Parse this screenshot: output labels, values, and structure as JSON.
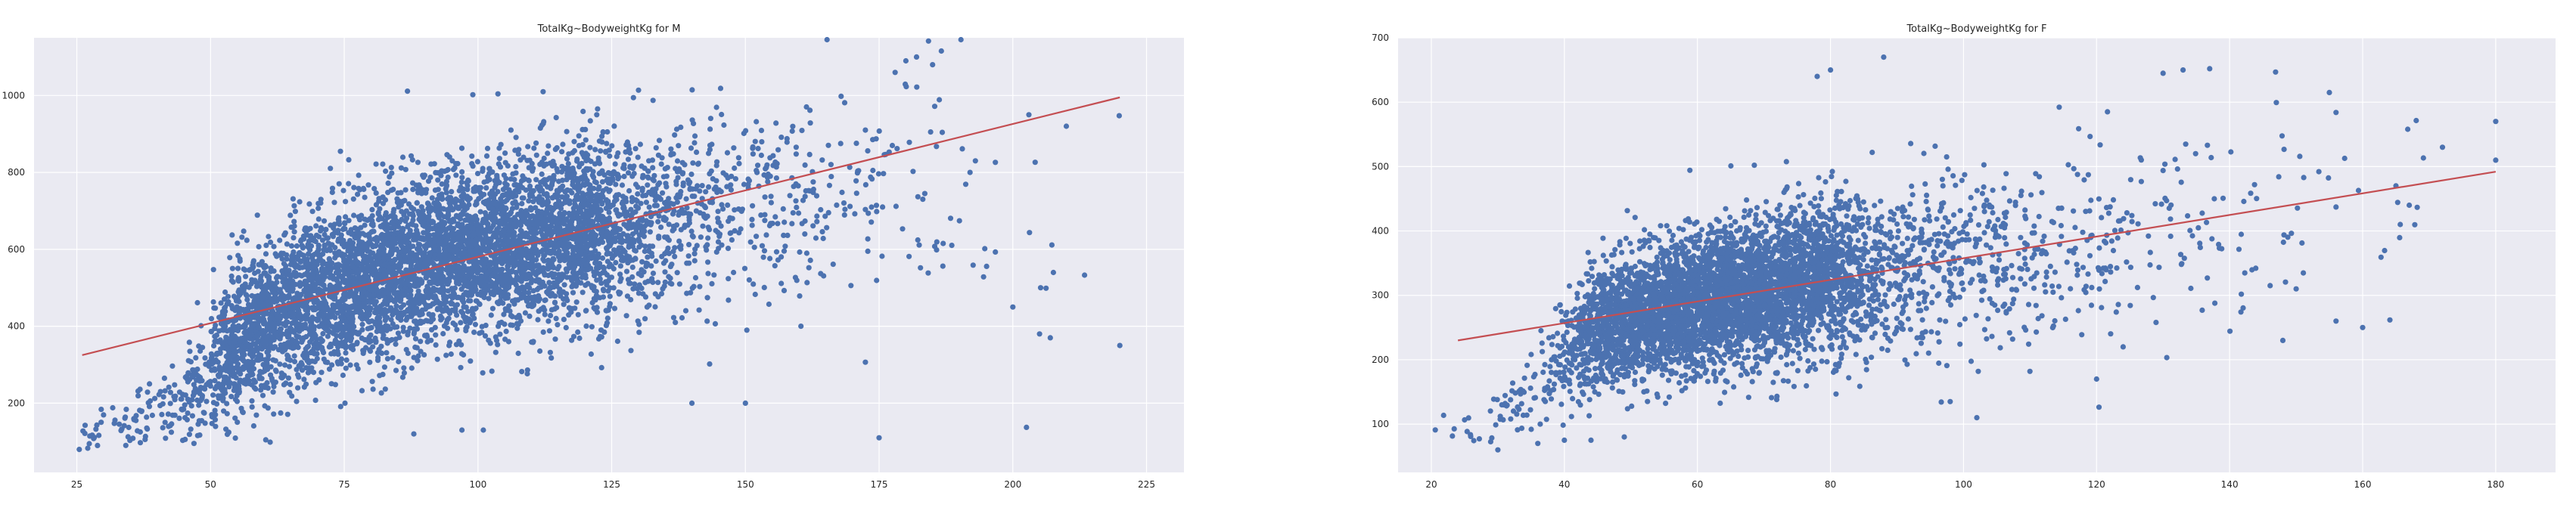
{
  "chart_data": [
    {
      "type": "scatter",
      "title": "TotalKg~BodyweightKg for M",
      "xlabel": "",
      "ylabel": "",
      "xlim": [
        17,
        232
      ],
      "ylim": [
        20,
        1150
      ],
      "x_ticks": [
        25,
        50,
        75,
        100,
        125,
        150,
        175,
        200,
        225
      ],
      "y_ticks": [
        200,
        400,
        600,
        800,
        1000
      ],
      "grid": true,
      "colors": {
        "points": "#4c72b0",
        "fit_line": "#c44e52",
        "axes_bg": "#eaeaf2",
        "grid": "#ffffff"
      },
      "series": [
        {
          "name": "",
          "kind": "scatter",
          "clusters": [
            {
              "x": 28,
              "y": 110,
              "n": 16,
              "sx": 2,
              "sy": 20
            },
            {
              "x": 35,
              "y": 140,
              "n": 30,
              "sx": 3,
              "sy": 30
            },
            {
              "x": 42,
              "y": 180,
              "n": 50,
              "sx": 3,
              "sy": 40
            },
            {
              "x": 48,
              "y": 240,
              "n": 80,
              "sx": 2,
              "sy": 60
            },
            {
              "x": 53,
              "y": 330,
              "n": 240,
              "sx": 2,
              "sy": 80
            },
            {
              "x": 57,
              "y": 380,
              "n": 260,
              "sx": 2,
              "sy": 90
            },
            {
              "x": 61,
              "y": 420,
              "n": 280,
              "sx": 2,
              "sy": 95
            },
            {
              "x": 66,
              "y": 450,
              "n": 320,
              "sx": 2,
              "sy": 100
            },
            {
              "x": 70,
              "y": 480,
              "n": 300,
              "sx": 2,
              "sy": 100
            },
            {
              "x": 75,
              "y": 500,
              "n": 340,
              "sx": 2,
              "sy": 105
            },
            {
              "x": 79,
              "y": 520,
              "n": 320,
              "sx": 2,
              "sy": 105
            },
            {
              "x": 83,
              "y": 540,
              "n": 360,
              "sx": 2,
              "sy": 110
            },
            {
              "x": 88,
              "y": 560,
              "n": 360,
              "sx": 2,
              "sy": 110
            },
            {
              "x": 93,
              "y": 580,
              "n": 380,
              "sx": 2,
              "sy": 110
            },
            {
              "x": 98,
              "y": 590,
              "n": 380,
              "sx": 2,
              "sy": 110
            },
            {
              "x": 103,
              "y": 610,
              "n": 380,
              "sx": 2,
              "sy": 110
            },
            {
              "x": 108,
              "y": 620,
              "n": 360,
              "sx": 2,
              "sy": 110
            },
            {
              "x": 113,
              "y": 630,
              "n": 330,
              "sx": 2,
              "sy": 115
            },
            {
              "x": 118,
              "y": 640,
              "n": 330,
              "sx": 2,
              "sy": 115
            },
            {
              "x": 122,
              "y": 650,
              "n": 300,
              "sx": 2,
              "sy": 115
            },
            {
              "x": 128,
              "y": 660,
              "n": 260,
              "sx": 3,
              "sy": 110
            },
            {
              "x": 135,
              "y": 680,
              "n": 200,
              "sx": 4,
              "sy": 110
            },
            {
              "x": 145,
              "y": 700,
              "n": 150,
              "sx": 5,
              "sy": 120
            },
            {
              "x": 158,
              "y": 740,
              "n": 110,
              "sx": 6,
              "sy": 130
            },
            {
              "x": 172,
              "y": 780,
              "n": 60,
              "sx": 6,
              "sy": 140
            },
            {
              "x": 188,
              "y": 760,
              "n": 30,
              "sx": 7,
              "sy": 160
            },
            {
              "x": 205,
              "y": 600,
              "n": 12,
              "sx": 6,
              "sy": 200
            }
          ],
          "points": [
            [
              182,
              1100
            ],
            [
              180,
              1090
            ],
            [
              185,
              1080
            ],
            [
              178,
              1060
            ],
            [
              203,
              950
            ],
            [
              210,
              920
            ],
            [
              200,
              450
            ],
            [
              205,
              380
            ],
            [
              207,
              370
            ],
            [
              220,
              350
            ],
            [
              175,
              110
            ],
            [
              150,
              200
            ],
            [
              140,
              200
            ],
            [
              101,
              130
            ],
            [
              88,
              120
            ],
            [
              97,
              130
            ],
            [
              193,
              830
            ],
            [
              192,
              800
            ]
          ]
        },
        {
          "name": "",
          "kind": "line",
          "x": [
            26,
            220
          ],
          "y": [
            325,
            995
          ]
        }
      ]
    },
    {
      "type": "scatter",
      "title": "TotalKg~BodyweightKg for F",
      "xlabel": "",
      "ylabel": "",
      "xlim": [
        15,
        189
      ],
      "ylim": [
        25,
        700
      ],
      "x_ticks": [
        20,
        40,
        60,
        80,
        100,
        120,
        140,
        160,
        180
      ],
      "y_ticks": [
        100,
        200,
        300,
        400,
        500,
        600,
        700
      ],
      "grid": true,
      "colors": {
        "points": "#4c72b0",
        "fit_line": "#c44e52",
        "axes_bg": "#eaeaf2",
        "grid": "#ffffff"
      },
      "series": [
        {
          "name": "",
          "kind": "scatter",
          "clusters": [
            {
              "x": 26,
              "y": 90,
              "n": 14,
              "sx": 2,
              "sy": 15
            },
            {
              "x": 32,
              "y": 120,
              "n": 28,
              "sx": 2,
              "sy": 20
            },
            {
              "x": 37,
              "y": 160,
              "n": 40,
              "sx": 2,
              "sy": 25
            },
            {
              "x": 41,
              "y": 210,
              "n": 100,
              "sx": 1.5,
              "sy": 40
            },
            {
              "x": 44,
              "y": 240,
              "n": 200,
              "sx": 1.5,
              "sy": 45
            },
            {
              "x": 47,
              "y": 255,
              "n": 260,
              "sx": 1.5,
              "sy": 45
            },
            {
              "x": 50,
              "y": 265,
              "n": 300,
              "sx": 1.5,
              "sy": 48
            },
            {
              "x": 53,
              "y": 272,
              "n": 330,
              "sx": 1.5,
              "sy": 50
            },
            {
              "x": 56,
              "y": 280,
              "n": 360,
              "sx": 1.5,
              "sy": 50
            },
            {
              "x": 59,
              "y": 285,
              "n": 370,
              "sx": 1.5,
              "sy": 52
            },
            {
              "x": 62,
              "y": 292,
              "n": 380,
              "sx": 1.5,
              "sy": 52
            },
            {
              "x": 65,
              "y": 298,
              "n": 380,
              "sx": 1.5,
              "sy": 55
            },
            {
              "x": 68,
              "y": 305,
              "n": 370,
              "sx": 1.5,
              "sy": 55
            },
            {
              "x": 71,
              "y": 310,
              "n": 350,
              "sx": 1.5,
              "sy": 55
            },
            {
              "x": 74,
              "y": 316,
              "n": 330,
              "sx": 1.5,
              "sy": 58
            },
            {
              "x": 77,
              "y": 322,
              "n": 300,
              "sx": 1.5,
              "sy": 58
            },
            {
              "x": 80,
              "y": 328,
              "n": 280,
              "sx": 1.5,
              "sy": 60
            },
            {
              "x": 84,
              "y": 335,
              "n": 240,
              "sx": 2,
              "sy": 60
            },
            {
              "x": 90,
              "y": 340,
              "n": 200,
              "sx": 3,
              "sy": 60
            },
            {
              "x": 98,
              "y": 350,
              "n": 170,
              "sx": 4,
              "sy": 65
            },
            {
              "x": 108,
              "y": 365,
              "n": 130,
              "sx": 5,
              "sy": 70
            },
            {
              "x": 120,
              "y": 380,
              "n": 90,
              "sx": 5,
              "sy": 75
            },
            {
              "x": 133,
              "y": 400,
              "n": 55,
              "sx": 6,
              "sy": 85
            },
            {
              "x": 148,
              "y": 410,
              "n": 30,
              "sx": 6,
              "sy": 90
            },
            {
              "x": 163,
              "y": 430,
              "n": 14,
              "sx": 7,
              "sy": 80
            }
          ],
          "points": [
            [
              88,
              670
            ],
            [
              80,
              650
            ],
            [
              78,
              640
            ],
            [
              133,
              650
            ],
            [
              137,
              652
            ],
            [
              130,
              645
            ],
            [
              155,
              615
            ],
            [
              180,
              570
            ],
            [
              180,
              510
            ],
            [
              172,
              530
            ],
            [
              167,
              440
            ],
            [
              160,
              250
            ],
            [
              156,
              260
            ],
            [
              148,
              230
            ],
            [
              150,
              310
            ],
            [
              102,
              110
            ],
            [
              98,
              135
            ],
            [
              36,
              70
            ],
            [
              40,
              75
            ],
            [
              30,
              60
            ],
            [
              44,
              75
            ],
            [
              49,
              80
            ],
            [
              120,
              170
            ],
            [
              124,
              220
            ],
            [
              165,
              470
            ]
          ]
        },
        {
          "name": "",
          "kind": "line",
          "x": [
            24,
            180
          ],
          "y": [
            230,
            492
          ]
        }
      ]
    }
  ]
}
